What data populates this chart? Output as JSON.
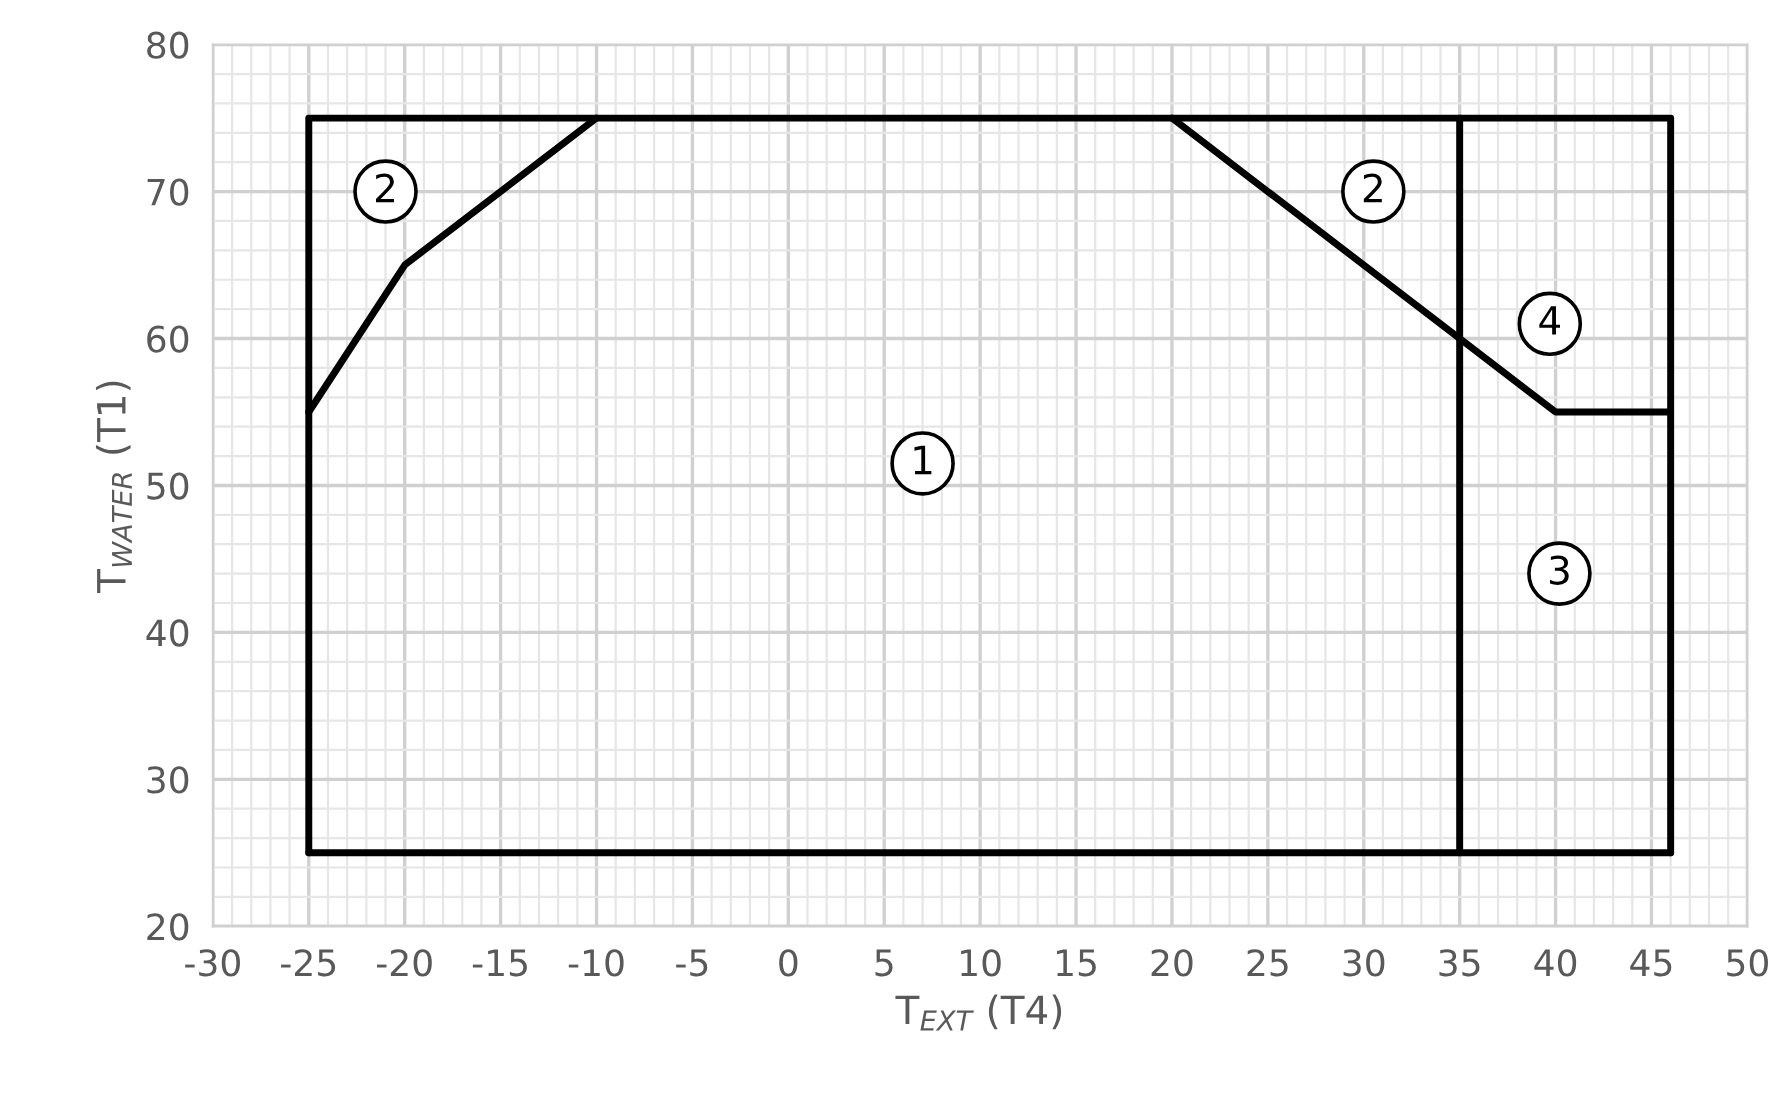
{
  "chart_data": {
    "type": "line",
    "xlabel": "T$_{EXT}$ (T4)",
    "ylabel": "T$_{WATER}$ (T1)",
    "series": [
      {
        "color": "#000000",
        "x": [
          -25,
          -25,
          46,
          46
        ],
        "values": [
          25,
          75,
          75,
          25
        ]
      },
      {
        "color": "#000000",
        "x": [
          -25,
          46
        ],
        "values": [
          25,
          25
        ]
      },
      {
        "color": "#000000",
        "x": [
          -25,
          -20,
          -10
        ],
        "values": [
          55,
          65,
          75
        ]
      },
      {
        "color": "#000000",
        "x": [
          20,
          35,
          40,
          46
        ],
        "values": [
          75,
          60,
          55,
          55
        ]
      },
      {
        "color": "#000000",
        "x": [
          35,
          35
        ],
        "values": [
          25,
          75
        ]
      }
    ],
    "annotations": [
      {
        "text": "1",
        "x": 7,
        "y": 51.5
      },
      {
        "text": "2",
        "x": -21,
        "y": 70
      },
      {
        "text": "2",
        "x": 30.5,
        "y": 70
      },
      {
        "text": "4",
        "x": 39.7,
        "y": 61
      },
      {
        "text": "3",
        "x": 40.2,
        "y": 44
      }
    ],
    "xlim": [
      -30,
      50
    ],
    "ylim": [
      20,
      80
    ],
    "xticks": [
      -30,
      -25,
      -20,
      -15,
      -10,
      -5,
      0,
      5,
      10,
      15,
      20,
      25,
      30,
      35,
      40,
      45,
      50
    ],
    "yticks": [
      20,
      30,
      40,
      50,
      60,
      70,
      80
    ],
    "grid": true,
    "line_style": "solid",
    "marker": "none"
  }
}
